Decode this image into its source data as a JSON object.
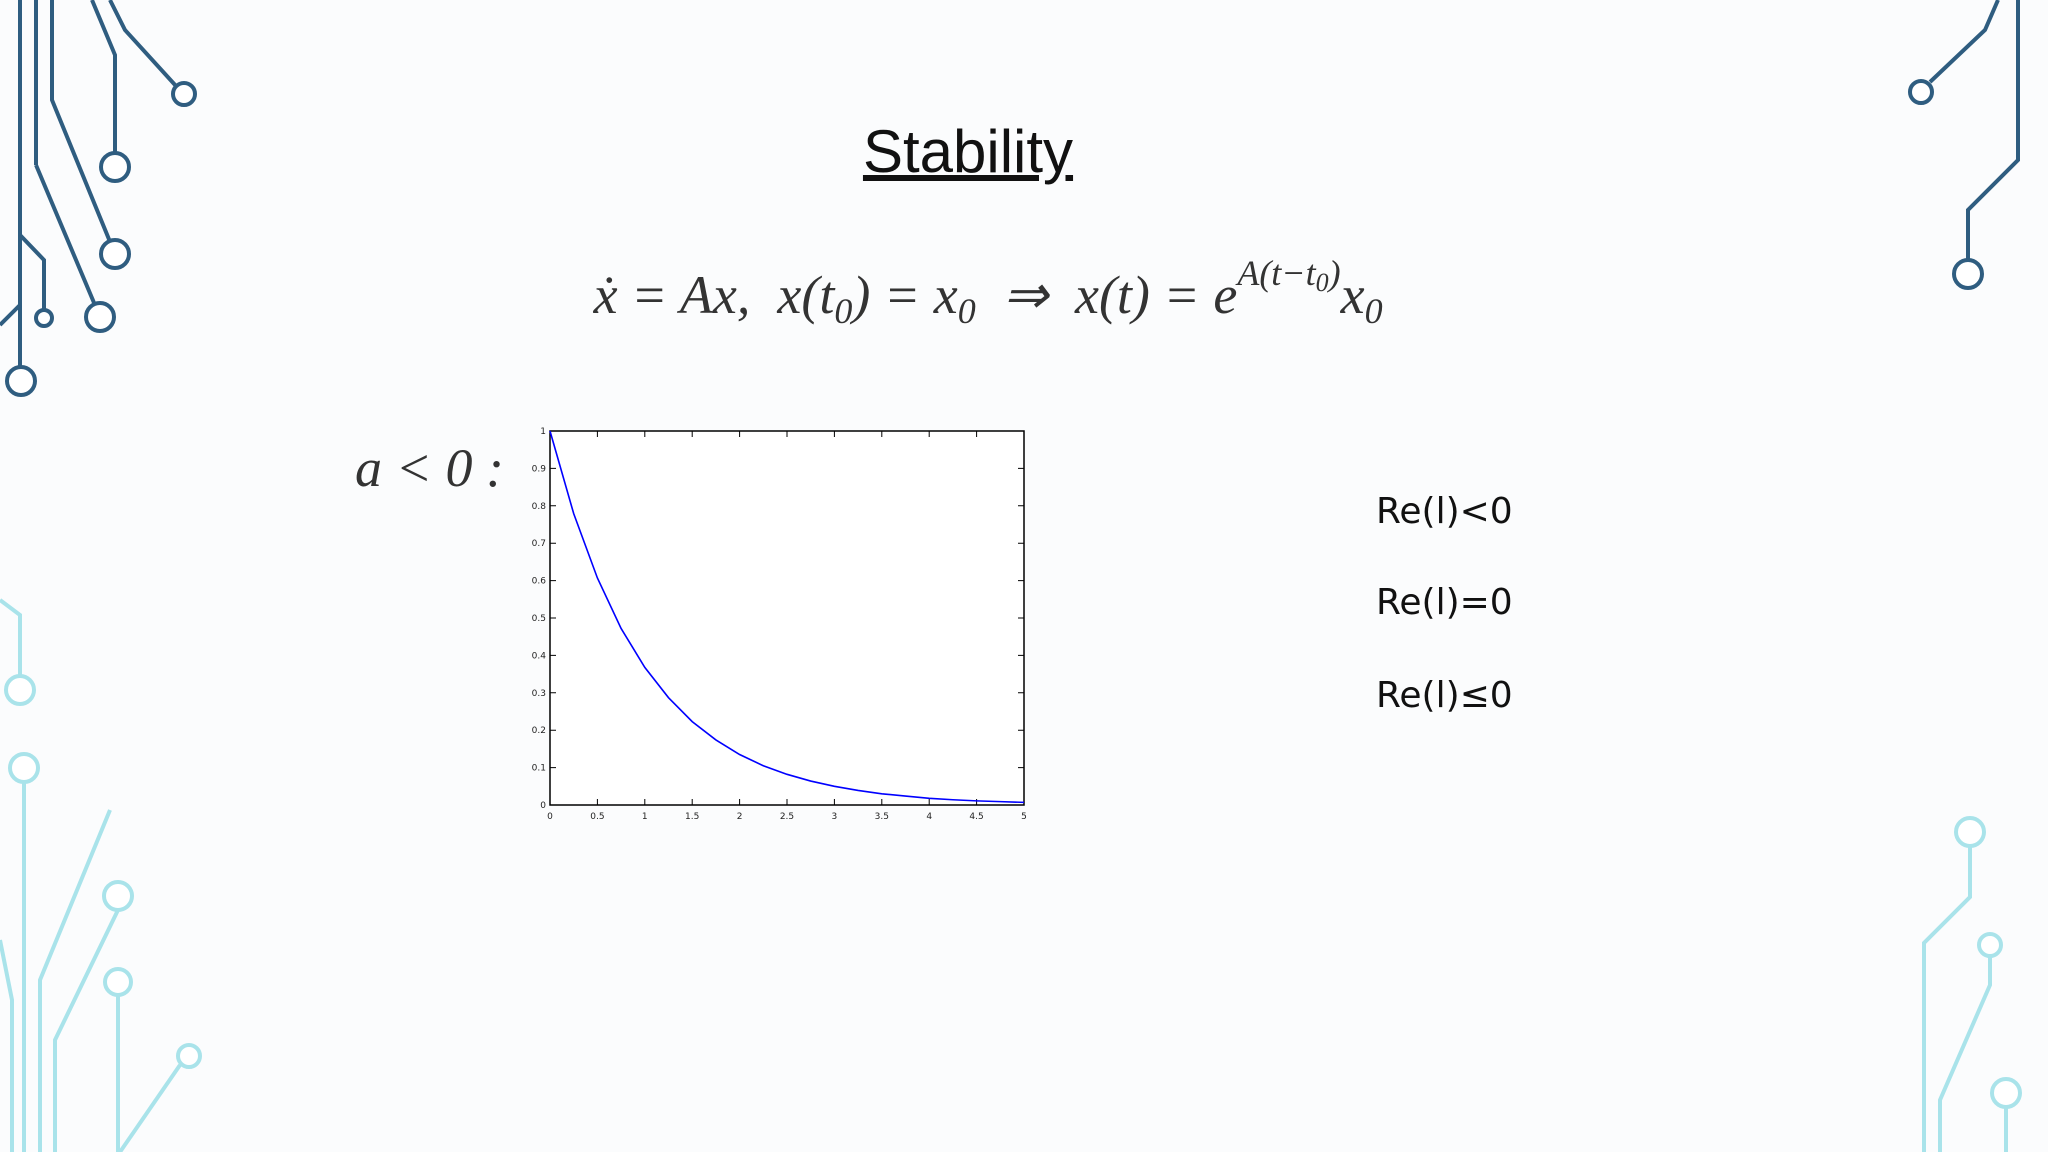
{
  "title": "Stability",
  "equation": {
    "parts": [
      "ẋ = Ax,  x(t",
      "0",
      ") = x",
      "0",
      "  ⇒  x(t) = e",
      "A(t−t",
      "0",
      ")",
      "x",
      "0"
    ]
  },
  "condition_label": "a < 0 :",
  "plot": {
    "type": "line",
    "x": [
      0,
      0.25,
      0.5,
      0.75,
      1,
      1.25,
      1.5,
      1.75,
      2,
      2.25,
      2.5,
      2.75,
      3,
      3.25,
      3.5,
      3.75,
      4,
      4.25,
      4.5,
      4.75,
      5
    ],
    "series": [
      {
        "color": "#0000ff",
        "values": [
          1,
          0.779,
          0.607,
          0.472,
          0.368,
          0.287,
          0.223,
          0.174,
          0.135,
          0.105,
          0.082,
          0.064,
          0.05,
          0.039,
          0.03,
          0.024,
          0.018,
          0.014,
          0.011,
          0.009,
          0.007
        ]
      }
    ],
    "xlim": [
      0,
      5
    ],
    "ylim": [
      0,
      1
    ],
    "xticks": [
      0,
      0.5,
      1,
      1.5,
      2,
      2.5,
      3,
      3.5,
      4,
      4.5,
      5
    ],
    "yticks": [
      0,
      0.1,
      0.2,
      0.3,
      0.4,
      0.5,
      0.6,
      0.7,
      0.8,
      0.9,
      1
    ]
  },
  "eigenvalue_conditions": [
    "Re(l)<0",
    "Re(l)=0",
    "Re(l)≤0"
  ]
}
